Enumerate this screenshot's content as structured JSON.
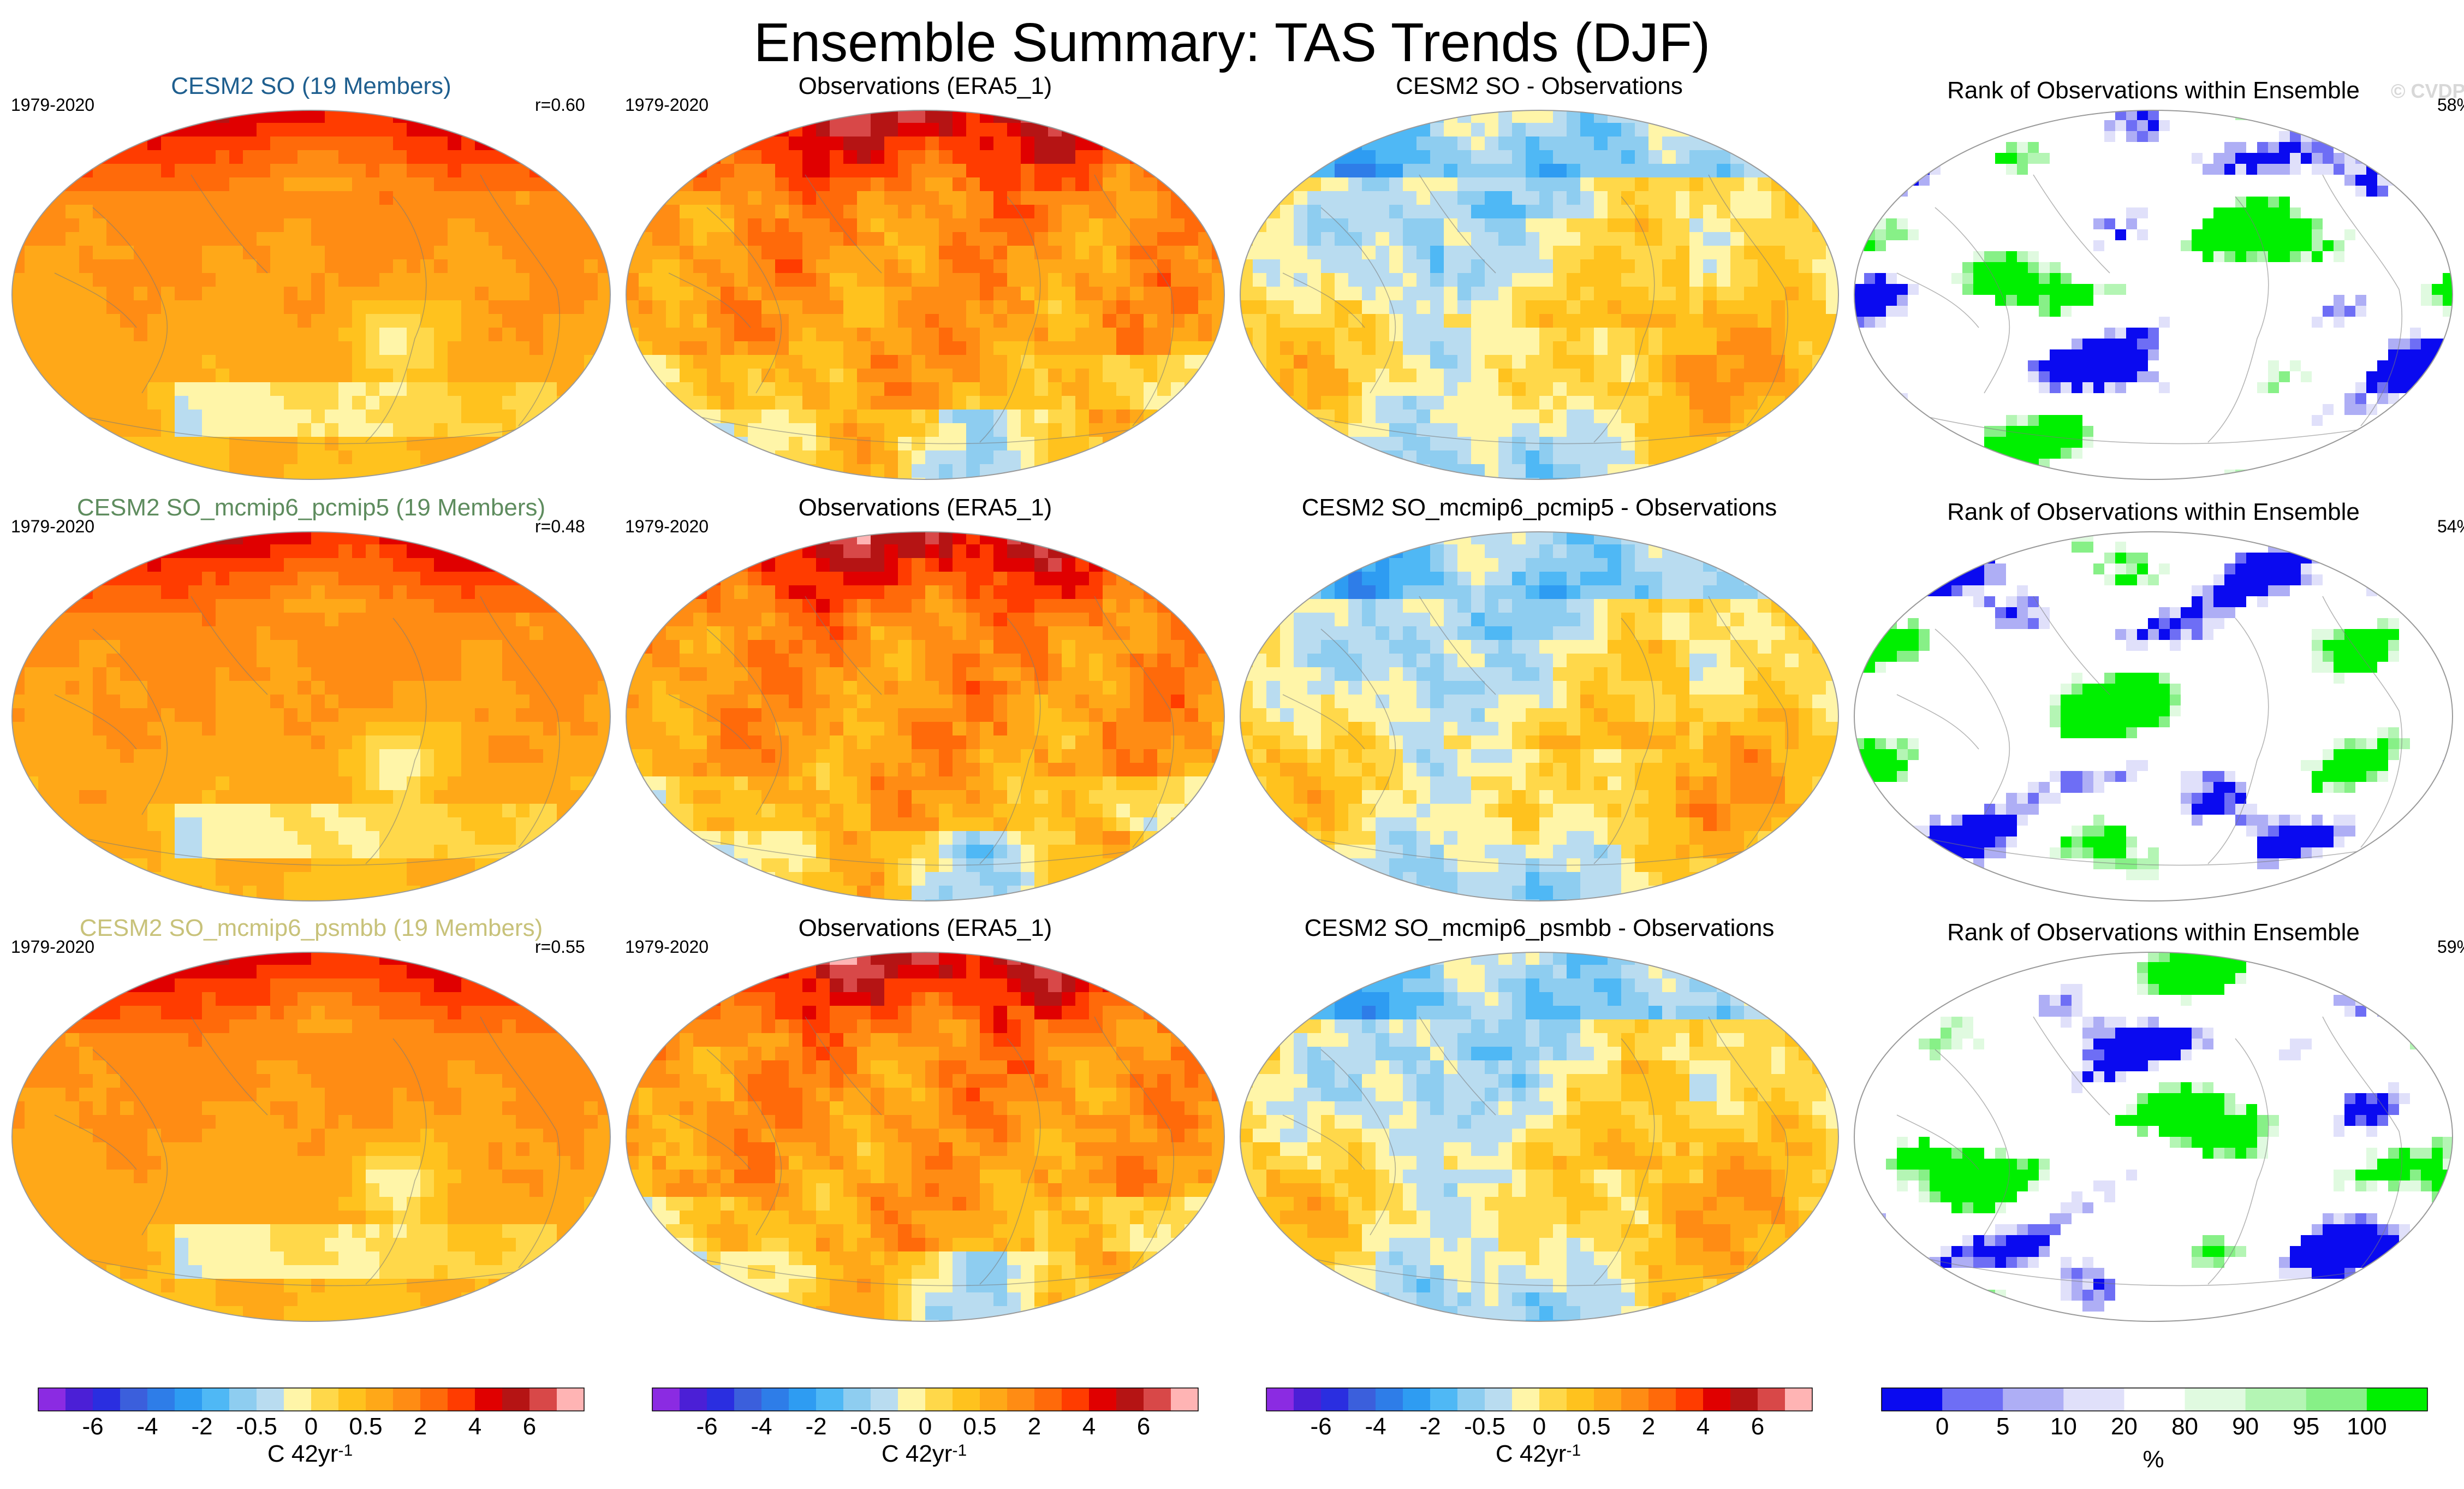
{
  "title": "Ensemble Summary: TAS Trends (DJF)",
  "watermark": "© CVDP-LE",
  "rows": [
    {
      "model_title": "CESM2 SO (19 Members)",
      "model_color": "#1f5f8f",
      "period": "1979-2020",
      "correlation": "r=0.60",
      "obs_title": "Observations (ERA5_1)",
      "obs_period": "1979-2020",
      "diff_title": "CESM2 SO - Observations",
      "rank_title": "Rank of Observations within Ensemble",
      "rank_pct": "58%"
    },
    {
      "model_title": "CESM2 SO_mcmip6_pcmip5 (19 Members)",
      "model_color": "#5e8c5e",
      "period": "1979-2020",
      "correlation": "r=0.48",
      "obs_title": "Observations (ERA5_1)",
      "obs_period": "1979-2020",
      "diff_title": "CESM2 SO_mcmip6_pcmip5 - Observations",
      "rank_title": "Rank of Observations within Ensemble",
      "rank_pct": "54%"
    },
    {
      "model_title": "CESM2 SO_mcmip6_psmbb (19 Members)",
      "model_color": "#c8c27a",
      "period": "1979-2020",
      "correlation": "r=0.55",
      "obs_title": "Observations (ERA5_1)",
      "obs_period": "1979-2020",
      "diff_title": "CESM2 SO_mcmip6_psmbb - Observations",
      "rank_title": "Rank of Observations within Ensemble",
      "rank_pct": "59%"
    }
  ],
  "chart_data": {
    "type": "heatmap",
    "description_units": "C 42yr-1",
    "trend_colorbar": {
      "levels": [
        -7,
        -6,
        -5,
        -4,
        -3,
        -2,
        -1,
        -0.5,
        -0.25,
        0,
        0.25,
        0.5,
        1,
        2,
        3,
        4,
        5,
        6,
        7,
        8
      ],
      "tick_labels": [
        "-6",
        "-4",
        "-2",
        "-0.5",
        "0",
        "0.5",
        "2",
        "4",
        "6"
      ],
      "colors": [
        "#8b2be2",
        "#4b1fd6",
        "#2a2ee0",
        "#3b5fdc",
        "#2e7de8",
        "#2e9cf2",
        "#4fb8f5",
        "#8ecdf0",
        "#b9dcf0",
        "#fff5a8",
        "#ffd84a",
        "#ffc21e",
        "#ffa818",
        "#ff8c14",
        "#ff6a0a",
        "#ff3c00",
        "#e00000",
        "#b51414",
        "#d84848",
        "#ffb4b4"
      ],
      "label": "C 42yr",
      "label_exponent": "-1"
    },
    "rank_colorbar": {
      "boundaries": [
        0,
        5,
        10,
        20,
        80,
        90,
        95,
        100
      ],
      "tick_labels": [
        "0",
        "5",
        "10",
        "20",
        "80",
        "90",
        "95",
        "100"
      ],
      "colors": [
        "#0a0af0",
        "#6e6ef5",
        "#aeaef5",
        "#e0e0fa",
        "#ffffff",
        "#e0fae0",
        "#b4f5b4",
        "#87f087",
        "#00f000"
      ],
      "label": "%"
    },
    "panels_per_row": [
      "model ensemble mean trend",
      "observed trend",
      "model minus observations",
      "rank of observations within ensemble"
    ]
  }
}
